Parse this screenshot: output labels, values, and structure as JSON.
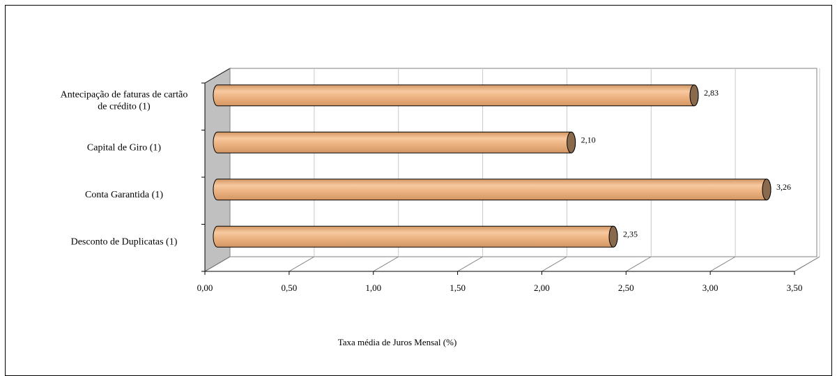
{
  "chart_data": {
    "type": "bar",
    "orientation": "horizontal",
    "three_d": true,
    "categories": [
      "Antecipação de faturas de cartão de crédito (1)",
      "Capital de Giro (1)",
      "Conta Garantida (1)",
      "Desconto de Duplicatas (1)"
    ],
    "category_lines": [
      [
        "Antecipação de faturas de cartão",
        "de crédito (1)"
      ],
      [
        "Capital de Giro (1)"
      ],
      [
        "Conta Garantida (1)"
      ],
      [
        "Desconto de Duplicatas (1)"
      ]
    ],
    "values": [
      2.83,
      2.1,
      3.26,
      2.35
    ],
    "value_labels": [
      "2,83",
      "2,10",
      "3,26",
      "2,35"
    ],
    "xlabel": "Taxa média de Juros Mensal (%)",
    "xlim": [
      0,
      3.5
    ],
    "x_ticks": [
      0,
      0.5,
      1,
      1.5,
      2,
      2.5,
      3,
      3.5
    ],
    "x_tick_labels": [
      "0,00",
      "0,50",
      "1,00",
      "1,50",
      "2,00",
      "2,50",
      "3,00",
      "3,50"
    ],
    "grid": true,
    "legend": "none",
    "colors": {
      "bar_light": "#f7c9a0",
      "bar_mid": "#eeb584",
      "bar_dark": "#d39663",
      "bar_cap": "#8a6a4d",
      "side_wall": "#c0c0c0",
      "gridline": "#c8c8c8"
    }
  }
}
